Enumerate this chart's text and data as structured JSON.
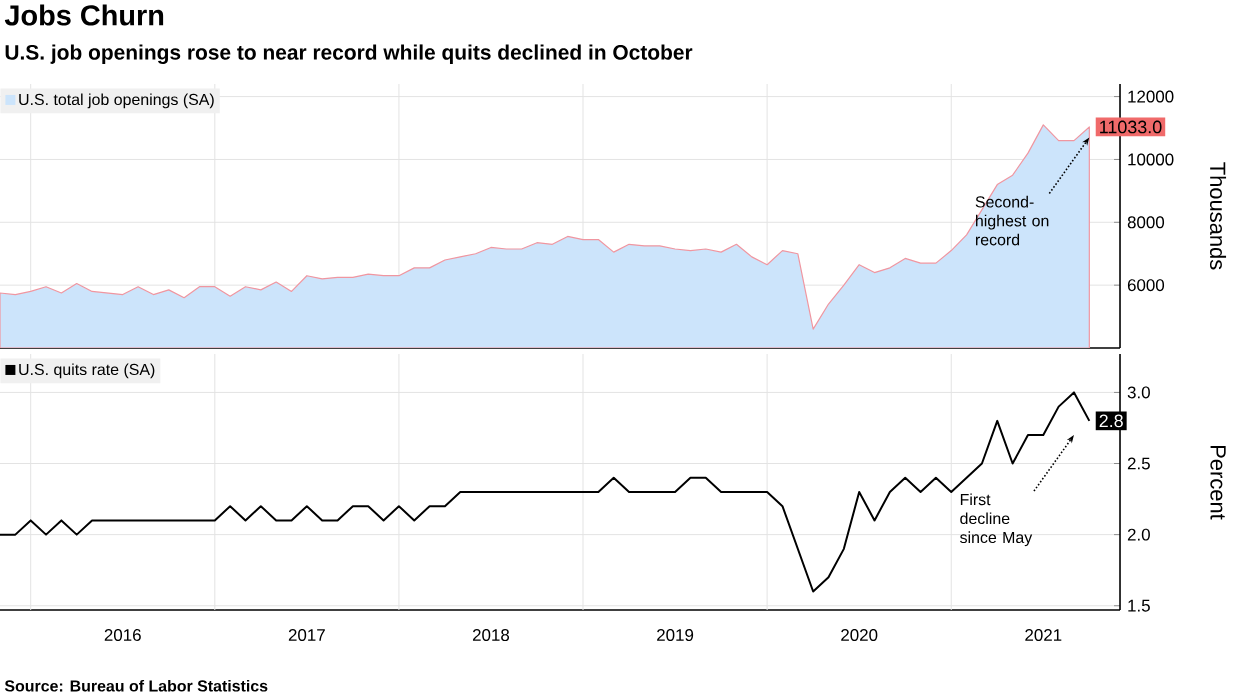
{
  "chart_data": [
    {
      "type": "area",
      "title": "Jobs Churn",
      "subtitle": "U.S. job openings rose to near record while quits declined in October",
      "ylabel": "Thousands",
      "x": [
        "2015-11",
        "2015-12",
        "2016-01",
        "2016-02",
        "2016-03",
        "2016-04",
        "2016-05",
        "2016-06",
        "2016-07",
        "2016-08",
        "2016-09",
        "2016-10",
        "2016-11",
        "2016-12",
        "2017-01",
        "2017-02",
        "2017-03",
        "2017-04",
        "2017-05",
        "2017-06",
        "2017-07",
        "2017-08",
        "2017-09",
        "2017-10",
        "2017-11",
        "2017-12",
        "2018-01",
        "2018-02",
        "2018-03",
        "2018-04",
        "2018-05",
        "2018-06",
        "2018-07",
        "2018-08",
        "2018-09",
        "2018-10",
        "2018-11",
        "2018-12",
        "2019-01",
        "2019-02",
        "2019-03",
        "2019-04",
        "2019-05",
        "2019-06",
        "2019-07",
        "2019-08",
        "2019-09",
        "2019-10",
        "2019-11",
        "2019-12",
        "2020-01",
        "2020-02",
        "2020-03",
        "2020-04",
        "2020-05",
        "2020-06",
        "2020-07",
        "2020-08",
        "2020-09",
        "2020-10",
        "2020-11",
        "2020-12",
        "2021-01",
        "2021-02",
        "2021-03",
        "2021-04",
        "2021-05",
        "2021-06",
        "2021-07",
        "2021-08",
        "2021-09",
        "2021-10"
      ],
      "series": [
        {
          "name": "U.S. total job openings (SA)",
          "color": "#cce4fb",
          "values": [
            5750,
            5700,
            5800,
            5950,
            5750,
            6050,
            5800,
            5750,
            5700,
            5950,
            5700,
            5850,
            5600,
            5950,
            5950,
            5650,
            5950,
            5850,
            6100,
            5800,
            6300,
            6200,
            6250,
            6250,
            6350,
            6300,
            6300,
            6550,
            6550,
            6800,
            6900,
            7000,
            7200,
            7150,
            7150,
            7350,
            7300,
            7550,
            7450,
            7450,
            7050,
            7300,
            7250,
            7250,
            7150,
            7100,
            7150,
            7050,
            7300,
            6900,
            6650,
            7100,
            7000,
            4600,
            5400,
            6000,
            6650,
            6400,
            6550,
            6850,
            6700,
            6700,
            7100,
            7600,
            8400,
            9200,
            9500,
            10200,
            11100,
            10600,
            10600,
            11033
          ],
          "value_labels": [
            null,
            null,
            null,
            null,
            null,
            null,
            null,
            null,
            null,
            null,
            null,
            null,
            null,
            null,
            null,
            null,
            null,
            null,
            null,
            null,
            null,
            null,
            null,
            null,
            null,
            null,
            null,
            null,
            null,
            null,
            null,
            null,
            null,
            null,
            null,
            null,
            null,
            null,
            null,
            null,
            null,
            null,
            null,
            null,
            null,
            null,
            null,
            null,
            null,
            null,
            null,
            null,
            null,
            null,
            null,
            null,
            null,
            null,
            null,
            null,
            null,
            null,
            null,
            null,
            null,
            null,
            null,
            null,
            null,
            null,
            null,
            "11033.0"
          ]
        }
      ],
      "xlim": [
        "2015-11",
        "2021-12"
      ],
      "ylim": [
        4000,
        12400
      ],
      "xticks": [
        {
          "value": "2016-01",
          "label": null
        },
        {
          "value": "2017-01",
          "label": null
        },
        {
          "value": "2018-01",
          "label": null
        },
        {
          "value": "2019-01",
          "label": null
        },
        {
          "value": "2020-01",
          "label": null
        },
        {
          "value": "2021-01",
          "label": null
        }
      ],
      "yticks": [
        6000,
        8000,
        10000,
        12000
      ],
      "tick_labels": "y",
      "grid": true,
      "legend": "top left",
      "annotations": [
        {
          "text": "Second-highest on record",
          "x": "2021-10",
          "y": 10700
        }
      ]
    },
    {
      "type": "line",
      "ylabel": "Percent",
      "x": [
        "2015-11",
        "2015-12",
        "2016-01",
        "2016-02",
        "2016-03",
        "2016-04",
        "2016-05",
        "2016-06",
        "2016-07",
        "2016-08",
        "2016-09",
        "2016-10",
        "2016-11",
        "2016-12",
        "2017-01",
        "2017-02",
        "2017-03",
        "2017-04",
        "2017-05",
        "2017-06",
        "2017-07",
        "2017-08",
        "2017-09",
        "2017-10",
        "2017-11",
        "2017-12",
        "2018-01",
        "2018-02",
        "2018-03",
        "2018-04",
        "2018-05",
        "2018-06",
        "2018-07",
        "2018-08",
        "2018-09",
        "2018-10",
        "2018-11",
        "2018-12",
        "2019-01",
        "2019-02",
        "2019-03",
        "2019-04",
        "2019-05",
        "2019-06",
        "2019-07",
        "2019-08",
        "2019-09",
        "2019-10",
        "2019-11",
        "2019-12",
        "2020-01",
        "2020-02",
        "2020-03",
        "2020-04",
        "2020-05",
        "2020-06",
        "2020-07",
        "2020-08",
        "2020-09",
        "2020-10",
        "2020-11",
        "2020-12",
        "2021-01",
        "2021-02",
        "2021-03",
        "2021-04",
        "2021-05",
        "2021-06",
        "2021-07",
        "2021-08",
        "2021-09",
        "2021-10"
      ],
      "series": [
        {
          "name": "U.S. quits rate (SA)",
          "color": "#000000",
          "values": [
            2.0,
            2.0,
            2.1,
            2.0,
            2.1,
            2.0,
            2.1,
            2.1,
            2.1,
            2.1,
            2.1,
            2.1,
            2.1,
            2.1,
            2.1,
            2.2,
            2.1,
            2.2,
            2.1,
            2.1,
            2.2,
            2.1,
            2.1,
            2.2,
            2.2,
            2.1,
            2.2,
            2.1,
            2.2,
            2.2,
            2.3,
            2.3,
            2.3,
            2.3,
            2.3,
            2.3,
            2.3,
            2.3,
            2.3,
            2.3,
            2.4,
            2.3,
            2.3,
            2.3,
            2.3,
            2.4,
            2.4,
            2.3,
            2.3,
            2.3,
            2.3,
            2.2,
            1.9,
            1.6,
            1.7,
            1.9,
            2.3,
            2.1,
            2.3,
            2.4,
            2.3,
            2.4,
            2.3,
            2.4,
            2.5,
            2.8,
            2.5,
            2.7,
            2.7,
            2.9,
            3.0,
            2.8
          ],
          "value_labels": [
            null,
            null,
            null,
            null,
            null,
            null,
            null,
            null,
            null,
            null,
            null,
            null,
            null,
            null,
            null,
            null,
            null,
            null,
            null,
            null,
            null,
            null,
            null,
            null,
            null,
            null,
            null,
            null,
            null,
            null,
            null,
            null,
            null,
            null,
            null,
            null,
            null,
            null,
            null,
            null,
            null,
            null,
            null,
            null,
            null,
            null,
            null,
            null,
            null,
            null,
            null,
            null,
            null,
            null,
            null,
            null,
            null,
            null,
            null,
            null,
            null,
            null,
            null,
            null,
            null,
            null,
            null,
            null,
            null,
            null,
            null,
            "2.8"
          ]
        }
      ],
      "xlim": [
        "2015-11",
        "2021-12"
      ],
      "ylim": [
        1.47,
        3.27
      ],
      "xticks": [
        {
          "value": "2016-01",
          "label": null
        },
        {
          "value": "2016-07",
          "label": "2016"
        },
        {
          "value": "2017-01",
          "label": null
        },
        {
          "value": "2017-07",
          "label": "2017"
        },
        {
          "value": "2018-01",
          "label": null
        },
        {
          "value": "2018-07",
          "label": "2018"
        },
        {
          "value": "2019-01",
          "label": null
        },
        {
          "value": "2019-07",
          "label": "2019"
        },
        {
          "value": "2020-01",
          "label": null
        },
        {
          "value": "2020-07",
          "label": "2020"
        },
        {
          "value": "2021-01",
          "label": null
        },
        {
          "value": "2021-07",
          "label": "2021"
        }
      ],
      "yticks": [
        1.5,
        {
          "value": 2,
          "label": "2.0"
        },
        2.5,
        {
          "value": 3,
          "label": "3.0"
        }
      ],
      "grid": true,
      "legend": "top left",
      "annotations": [
        {
          "text": "First decline since May",
          "x": "2021-09",
          "y": 2.7
        },
        "Source: Bureau of Labor Statistics"
      ]
    }
  ]
}
